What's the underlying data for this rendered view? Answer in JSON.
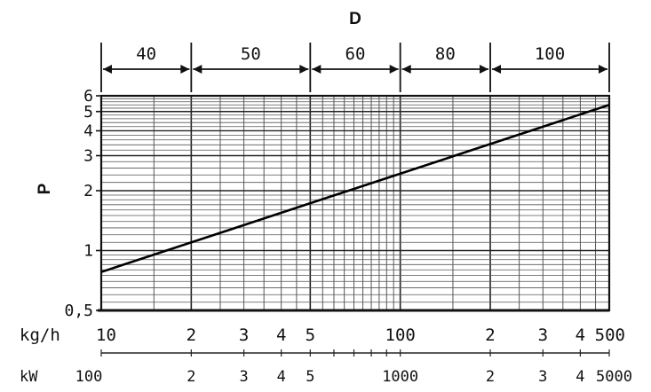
{
  "chart_data": {
    "type": "line",
    "title": "",
    "top_axis": {
      "label": "D",
      "segments": [
        {
          "label": "40",
          "from": 10,
          "to": 20
        },
        {
          "label": "50",
          "from": 20,
          "to": 50
        },
        {
          "label": "60",
          "from": 50,
          "to": 100
        },
        {
          "label": "80",
          "from": 100,
          "to": 200
        },
        {
          "label": "100",
          "from": 200,
          "to": 500
        }
      ]
    },
    "x_axis": {
      "label": "kg/h",
      "scale": "log",
      "range": [
        10,
        500
      ],
      "ticks": [
        {
          "value": 10,
          "label": "10"
        },
        {
          "value": 20,
          "label": "2"
        },
        {
          "value": 30,
          "label": "3"
        },
        {
          "value": 40,
          "label": "4"
        },
        {
          "value": 50,
          "label": "5"
        },
        {
          "value": 100,
          "label": "100"
        },
        {
          "value": 200,
          "label": "2"
        },
        {
          "value": 300,
          "label": "3"
        },
        {
          "value": 400,
          "label": "4"
        },
        {
          "value": 500,
          "label": "500"
        }
      ]
    },
    "x2_axis": {
      "label": "kW",
      "scale": "log",
      "range": [
        100,
        5000
      ],
      "ticks": [
        {
          "value": 100,
          "label": "100"
        },
        {
          "value": 200,
          "label": "2"
        },
        {
          "value": 300,
          "label": "3"
        },
        {
          "value": 400,
          "label": "4"
        },
        {
          "value": 500,
          "label": "5"
        },
        {
          "value": 1000,
          "label": "1000"
        },
        {
          "value": 2000,
          "label": "2"
        },
        {
          "value": 3000,
          "label": "3"
        },
        {
          "value": 4000,
          "label": "4"
        },
        {
          "value": 5000,
          "label": "5000"
        }
      ]
    },
    "y_axis": {
      "label": "P",
      "scale": "log",
      "range": [
        0.5,
        6
      ],
      "ticks": [
        {
          "value": 0.5,
          "label": "0,5"
        },
        {
          "value": 1,
          "label": "1"
        },
        {
          "value": 2,
          "label": "2"
        },
        {
          "value": 3,
          "label": "3"
        },
        {
          "value": 4,
          "label": "4"
        },
        {
          "value": 5,
          "label": "5"
        },
        {
          "value": 6,
          "label": "6"
        }
      ]
    },
    "grid": true,
    "series": [
      {
        "points": [
          {
            "x": 10,
            "y": 0.78
          },
          {
            "x": 500,
            "y": 5.4
          }
        ]
      }
    ]
  }
}
